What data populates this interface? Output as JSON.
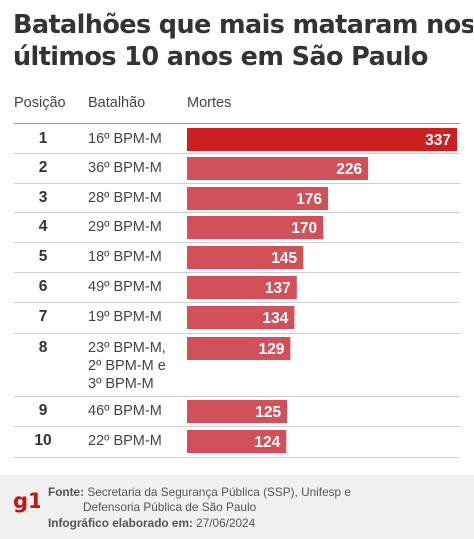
{
  "title_line1": "Batalhões que mais mataram nos",
  "title_line2": "últimos 10 anos em São Paulo",
  "headers": {
    "position": "Posição",
    "battalion": "Batalhão",
    "deaths": "Mortes"
  },
  "colors": {
    "highlight_bar": "#cc1f1f",
    "bar": "#d1505a",
    "text": "#333333"
  },
  "chart_data": {
    "type": "bar",
    "orientation": "horizontal",
    "rows": [
      {
        "position": "1",
        "battalion": [
          "16º BPM-M"
        ],
        "value": 337
      },
      {
        "position": "2",
        "battalion": [
          "36º BPM-M"
        ],
        "value": 226
      },
      {
        "position": "3",
        "battalion": [
          "28º BPM-M"
        ],
        "value": 176
      },
      {
        "position": "4",
        "battalion": [
          "29º BPM-M"
        ],
        "value": 170
      },
      {
        "position": "5",
        "battalion": [
          "18º BPM-M"
        ],
        "value": 145
      },
      {
        "position": "6",
        "battalion": [
          "49º BPM-M"
        ],
        "value": 137
      },
      {
        "position": "7",
        "battalion": [
          "19º BPM-M"
        ],
        "value": 134
      },
      {
        "position": "8",
        "battalion": [
          "23º BPM-M,",
          "2º BPM-M e",
          "3º BPM-M"
        ],
        "value": 129
      },
      {
        "position": "9",
        "battalion": [
          "46º BPM-M"
        ],
        "value": 125
      },
      {
        "position": "10",
        "battalion": [
          "22º BPM-M"
        ],
        "value": 124
      }
    ]
  },
  "footer": {
    "logo": "g1",
    "source_label": "Fonte:",
    "source_text_line1": "Secretaria da Segurança Pública (SSP), Unifesp e",
    "source_text_line2": "Defensoria Pública de São Paulo",
    "credit_label": "Infográfico elaborado em:",
    "credit_date": "27/06/2024"
  }
}
